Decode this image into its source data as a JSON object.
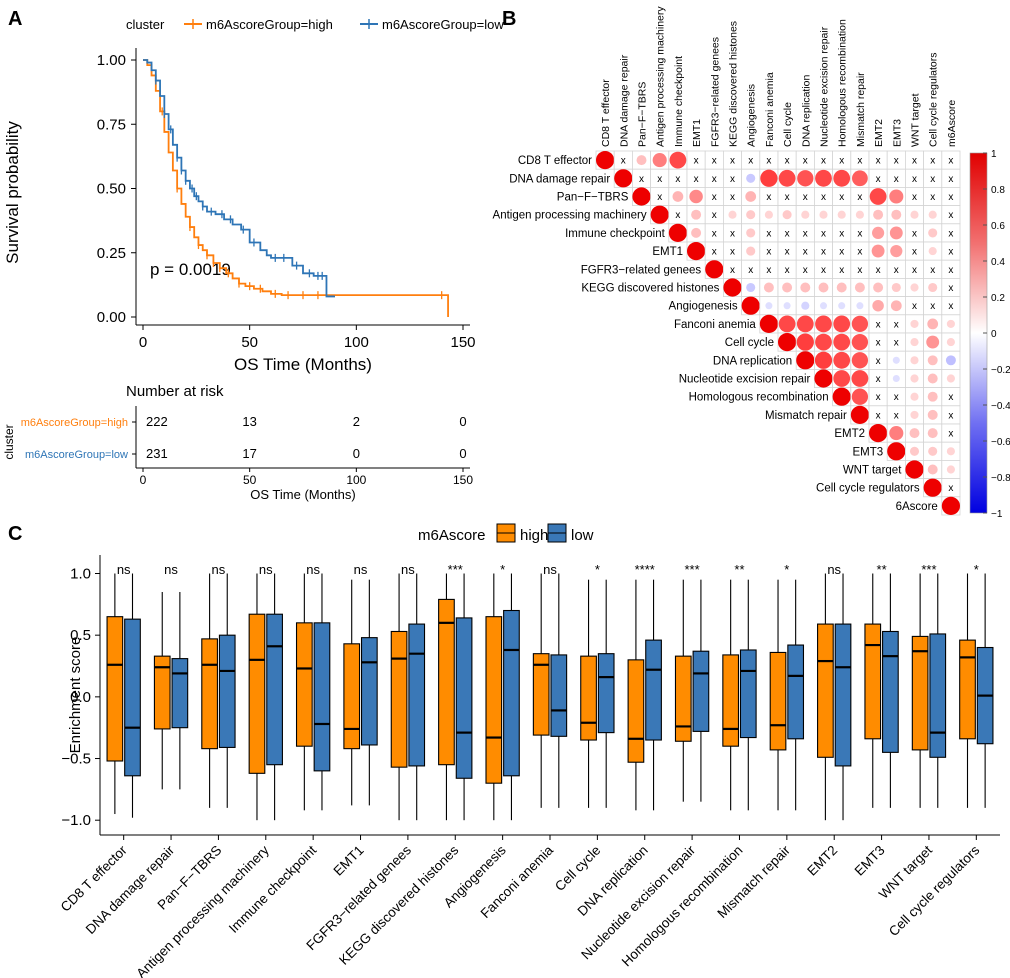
{
  "panels": {
    "a": "A",
    "b": "B",
    "c": "C"
  },
  "colors": {
    "high": "#ff7f0e",
    "low": "#2e75b6",
    "box_high": "#ff8c00",
    "box_low": "#3a78b7",
    "pos": "#ff0000",
    "neg": "#0000ff"
  },
  "chart_data": [
    {
      "type": "line",
      "id": "km",
      "title": "",
      "xlabel": "OS Time (Months)",
      "ylabel": "Survival probability",
      "xlim": [
        0,
        150
      ],
      "ylim": [
        0,
        1
      ],
      "x_ticks": [
        "0",
        "50",
        "100",
        "150"
      ],
      "y_ticks": [
        "0.00",
        "0.25",
        "0.50",
        "0.75",
        "1.00"
      ],
      "legend_title": "cluster",
      "pvalue": "p = 0.0019",
      "series": [
        {
          "name": "m6AscoreGroup=high",
          "x": [
            0,
            2,
            4,
            6,
            8,
            10,
            12,
            14,
            16,
            18,
            20,
            22,
            24,
            26,
            28,
            30,
            33,
            36,
            39,
            42,
            45,
            48,
            52,
            56,
            60,
            65,
            70,
            80,
            90,
            100,
            110,
            120,
            130,
            143,
            143
          ],
          "y": [
            1.0,
            0.98,
            0.94,
            0.88,
            0.8,
            0.72,
            0.64,
            0.57,
            0.5,
            0.44,
            0.39,
            0.35,
            0.31,
            0.28,
            0.26,
            0.24,
            0.21,
            0.19,
            0.17,
            0.15,
            0.13,
            0.12,
            0.11,
            0.1,
            0.09,
            0.085,
            0.085,
            0.085,
            0.085,
            0.085,
            0.085,
            0.085,
            0.085,
            0.085,
            0.0
          ],
          "censor_x": [
            9,
            16,
            22,
            26,
            30,
            33,
            36,
            40,
            45,
            50,
            55,
            62,
            68,
            75,
            82,
            140
          ]
        },
        {
          "name": "m6AscoreGroup=low",
          "x": [
            0,
            2,
            4,
            6,
            8,
            10,
            12,
            14,
            16,
            18,
            20,
            22,
            24,
            26,
            28,
            30,
            34,
            38,
            42,
            46,
            50,
            55,
            58,
            60,
            65,
            70,
            75,
            80,
            84,
            86,
            88,
            90
          ],
          "y": [
            1.0,
            0.99,
            0.96,
            0.92,
            0.86,
            0.79,
            0.73,
            0.67,
            0.62,
            0.57,
            0.53,
            0.5,
            0.47,
            0.45,
            0.43,
            0.41,
            0.4,
            0.38,
            0.36,
            0.34,
            0.29,
            0.26,
            0.24,
            0.23,
            0.23,
            0.2,
            0.17,
            0.16,
            0.16,
            0.08,
            0.08,
            0.08
          ],
          "censor_x": [
            6,
            10,
            13,
            16,
            18,
            20,
            23,
            25,
            28,
            32,
            37,
            41,
            47,
            52,
            62,
            66,
            72,
            78,
            82,
            84
          ]
        }
      ]
    },
    {
      "type": "table",
      "id": "risk",
      "title": "Number at risk",
      "xlabel": "OS Time (Months)",
      "ylabel": "cluster",
      "x_ticks": [
        "0",
        "50",
        "100",
        "150"
      ],
      "rows": [
        {
          "name": "m6AscoreGroup=high",
          "values": [
            "222",
            "13",
            "2",
            "0"
          ]
        },
        {
          "name": "m6AscoreGroup=low",
          "values": [
            "231",
            "17",
            "0",
            "0"
          ]
        }
      ]
    },
    {
      "type": "heatmap",
      "id": "corr",
      "col_labels": [
        "CD8 T effector",
        "DNA damage repair",
        "Pan−F−TBRS",
        "Antigen processing machinery",
        "Immune checkpoint",
        "EMT1",
        "FGFR3−related genees",
        "KEGG discovered histones",
        "Angiogenesis",
        "Fanconi anemia",
        "Cell cycle",
        "DNA replication",
        "Nucleotide excision repair",
        "Homologous recombination",
        "Mismatch repair",
        "EMT2",
        "EMT3",
        "WNT target",
        "Cell cycle regulators",
        "m6Ascore"
      ],
      "row_labels": [
        "CD8 T effector",
        "DNA damage repair",
        "Pan−F−TBRS",
        "Antigen processing machinery",
        "Immune checkpoint",
        "EMT1",
        "FGFR3−related genees",
        "KEGG discovered histones",
        "Angiogenesis",
        "Fanconi anemia",
        "Cell cycle",
        "DNA replication",
        "Nucleotide excision repair",
        "Homologous recombination",
        "Mismatch repair",
        "EMT2",
        "EMT3",
        "WNT target",
        "Cell cycle regulators",
        "6Ascore"
      ],
      "not_significant_mark": "x",
      "colorbar_ticks": [
        "1",
        "0.8",
        "0.6",
        "0.4",
        "0.2",
        "0",
        "−0.2",
        "−0.4",
        "−0.6",
        "−0.8",
        "−1"
      ],
      "values": [
        [
          1,
          null,
          0.3,
          0.6,
          0.85,
          null,
          null,
          null,
          null,
          null,
          null,
          null,
          null,
          null,
          null,
          null,
          null,
          null,
          null,
          null
        ],
        [
          null,
          1,
          null,
          null,
          null,
          null,
          null,
          null,
          -0.25,
          0.9,
          0.85,
          0.8,
          0.85,
          0.85,
          0.75,
          null,
          null,
          null,
          null,
          null
        ],
        [
          null,
          null,
          1,
          null,
          0.35,
          0.55,
          null,
          null,
          0.35,
          null,
          null,
          null,
          null,
          null,
          null,
          0.85,
          0.6,
          null,
          null,
          null
        ],
        [
          null,
          null,
          null,
          1,
          null,
          0.3,
          null,
          0.2,
          0.25,
          0.2,
          0.25,
          0.2,
          0.2,
          0.2,
          0.2,
          0.3,
          0.3,
          0.2,
          0.2,
          null
        ],
        [
          null,
          null,
          null,
          null,
          1,
          0.3,
          null,
          null,
          0.25,
          null,
          null,
          null,
          null,
          null,
          null,
          0.45,
          0.5,
          null,
          0.25,
          null
        ],
        [
          null,
          null,
          null,
          null,
          null,
          1,
          null,
          null,
          0.25,
          null,
          null,
          null,
          null,
          null,
          null,
          0.5,
          0.45,
          null,
          0.2,
          null
        ],
        [
          null,
          null,
          null,
          null,
          null,
          null,
          1,
          null,
          null,
          null,
          null,
          null,
          null,
          null,
          null,
          null,
          null,
          null,
          null,
          null
        ],
        [
          null,
          null,
          null,
          null,
          null,
          null,
          null,
          1,
          -0.25,
          0.3,
          0.3,
          0.3,
          0.3,
          0.3,
          0.3,
          0.3,
          0.25,
          0.2,
          0.25,
          null
        ],
        [
          null,
          null,
          null,
          null,
          null,
          null,
          null,
          null,
          1,
          -0.15,
          -0.15,
          -0.2,
          -0.15,
          -0.15,
          -0.15,
          0.4,
          0.35,
          null,
          null,
          null
        ],
        [
          null,
          null,
          null,
          null,
          null,
          null,
          null,
          null,
          null,
          1,
          0.85,
          0.85,
          0.85,
          0.85,
          0.8,
          null,
          null,
          0.2,
          0.35,
          0.2
        ],
        [
          null,
          null,
          null,
          null,
          null,
          null,
          null,
          null,
          null,
          null,
          1,
          0.9,
          0.85,
          0.85,
          0.8,
          null,
          null,
          0.2,
          0.5,
          0.2
        ],
        [
          null,
          null,
          null,
          null,
          null,
          null,
          null,
          null,
          null,
          null,
          null,
          1,
          0.9,
          0.85,
          0.8,
          null,
          -0.15,
          0.2,
          0.3,
          -0.3
        ],
        [
          null,
          null,
          null,
          null,
          null,
          null,
          null,
          null,
          null,
          null,
          null,
          null,
          1,
          0.85,
          0.85,
          null,
          -0.15,
          0.2,
          0.3,
          0.2
        ],
        [
          null,
          null,
          null,
          null,
          null,
          null,
          null,
          null,
          null,
          null,
          null,
          null,
          null,
          1,
          0.8,
          null,
          null,
          0.2,
          0.3,
          null
        ],
        [
          null,
          null,
          null,
          null,
          null,
          null,
          null,
          null,
          null,
          null,
          null,
          null,
          null,
          null,
          1,
          null,
          null,
          0.2,
          0.3,
          null
        ],
        [
          null,
          null,
          null,
          null,
          null,
          null,
          null,
          null,
          null,
          null,
          null,
          null,
          null,
          null,
          null,
          1,
          0.6,
          0.3,
          0.3,
          null
        ],
        [
          null,
          null,
          null,
          null,
          null,
          null,
          null,
          null,
          null,
          null,
          null,
          null,
          null,
          null,
          null,
          null,
          1,
          0.25,
          0.25,
          0.2
        ],
        [
          null,
          null,
          null,
          null,
          null,
          null,
          null,
          null,
          null,
          null,
          null,
          null,
          null,
          null,
          null,
          null,
          null,
          1,
          0.3,
          0.2
        ],
        [
          null,
          null,
          null,
          null,
          null,
          null,
          null,
          null,
          null,
          null,
          null,
          null,
          null,
          null,
          null,
          null,
          null,
          null,
          1,
          null
        ],
        [
          null,
          null,
          null,
          null,
          null,
          null,
          null,
          null,
          null,
          null,
          null,
          null,
          null,
          null,
          null,
          null,
          null,
          null,
          null,
          1
        ]
      ]
    },
    {
      "type": "bar",
      "subtype": "boxplot",
      "id": "box",
      "title": "",
      "xlabel": "",
      "ylabel": "Enrichment score",
      "ylim": [
        -1.12,
        1.15
      ],
      "y_ticks": [
        "−1.0",
        "−0.5",
        "0.0",
        "0.5",
        "1.0"
      ],
      "legend_title": "m6Ascore",
      "legend_labels": [
        "high",
        "low"
      ],
      "categories": [
        "CD8 T effector",
        "DNA damage repair",
        "Pan−F−TBRS",
        "Antigen processing machinery",
        "Immune checkpoint",
        "EMT1",
        "FGFR3−related genees",
        "KEGG discovered histones",
        "Angiogenesis",
        "Fanconi anemia",
        "Cell cycle",
        "DNA replication",
        "Nucleotide excision repair",
        "Homologous recombination",
        "Mismatch repair",
        "EMT2",
        "EMT3",
        "WNT target",
        "Cell cycle regulators"
      ],
      "significance": [
        "ns",
        "ns",
        "ns",
        "ns",
        "ns",
        "ns",
        "ns",
        "***",
        "*",
        "ns",
        "*",
        "****",
        "***",
        "**",
        "*",
        "ns",
        "**",
        "***",
        "*"
      ],
      "series": [
        {
          "name": "high",
          "boxes": [
            [
              -0.95,
              -0.52,
              0.26,
              0.65,
              1.0
            ],
            [
              -0.75,
              -0.26,
              0.24,
              0.33,
              0.85
            ],
            [
              -0.9,
              -0.42,
              0.26,
              0.47,
              1.0
            ],
            [
              -1.0,
              -0.62,
              0.3,
              0.67,
              1.0
            ],
            [
              -0.92,
              -0.4,
              0.23,
              0.6,
              1.0
            ],
            [
              -0.88,
              -0.42,
              -0.26,
              0.43,
              0.95
            ],
            [
              -1.0,
              -0.57,
              0.31,
              0.53,
              1.0
            ],
            [
              -1.0,
              -0.55,
              0.6,
              0.79,
              1.0
            ],
            [
              -1.0,
              -0.7,
              -0.33,
              0.65,
              1.0
            ],
            [
              -0.9,
              -0.31,
              0.26,
              0.35,
              1.0
            ],
            [
              -0.9,
              -0.35,
              -0.21,
              0.33,
              0.95
            ],
            [
              -0.92,
              -0.53,
              -0.34,
              0.3,
              0.95
            ],
            [
              -0.85,
              -0.36,
              -0.24,
              0.33,
              0.95
            ],
            [
              -0.92,
              -0.4,
              -0.26,
              0.34,
              0.95
            ],
            [
              -0.92,
              -0.43,
              -0.23,
              0.36,
              0.95
            ],
            [
              -1.0,
              -0.49,
              0.29,
              0.59,
              1.0
            ],
            [
              -0.9,
              -0.34,
              0.42,
              0.59,
              1.0
            ],
            [
              -0.9,
              -0.43,
              0.37,
              0.49,
              1.0
            ],
            [
              -0.9,
              -0.34,
              0.32,
              0.46,
              1.0
            ]
          ]
        },
        {
          "name": "low",
          "boxes": [
            [
              -0.98,
              -0.64,
              -0.25,
              0.63,
              1.0
            ],
            [
              -0.75,
              -0.25,
              0.19,
              0.31,
              0.85
            ],
            [
              -0.9,
              -0.41,
              0.21,
              0.5,
              1.0
            ],
            [
              -1.0,
              -0.55,
              0.41,
              0.67,
              1.0
            ],
            [
              -0.92,
              -0.6,
              -0.22,
              0.6,
              1.0
            ],
            [
              -0.88,
              -0.39,
              0.28,
              0.48,
              0.95
            ],
            [
              -1.0,
              -0.56,
              0.35,
              0.59,
              1.0
            ],
            [
              -1.0,
              -0.66,
              -0.29,
              0.64,
              1.0
            ],
            [
              -1.0,
              -0.64,
              0.38,
              0.7,
              1.0
            ],
            [
              -0.9,
              -0.32,
              -0.11,
              0.34,
              1.0
            ],
            [
              -0.9,
              -0.29,
              0.16,
              0.35,
              0.95
            ],
            [
              -0.92,
              -0.35,
              0.22,
              0.46,
              0.95
            ],
            [
              -0.85,
              -0.28,
              0.19,
              0.37,
              0.95
            ],
            [
              -0.92,
              -0.33,
              0.21,
              0.38,
              0.95
            ],
            [
              -0.92,
              -0.34,
              0.17,
              0.42,
              0.95
            ],
            [
              -1.0,
              -0.56,
              0.24,
              0.59,
              1.0
            ],
            [
              -0.9,
              -0.45,
              0.33,
              0.53,
              1.0
            ],
            [
              -0.9,
              -0.49,
              -0.29,
              0.51,
              1.0
            ],
            [
              -0.9,
              -0.38,
              0.01,
              0.4,
              1.0
            ]
          ]
        }
      ]
    }
  ]
}
